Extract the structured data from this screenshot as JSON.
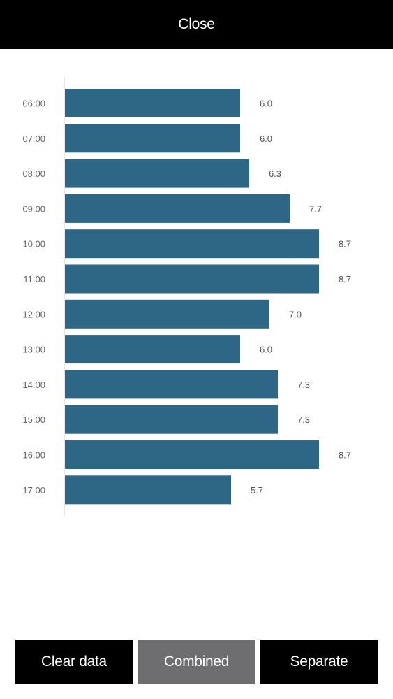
{
  "header": {
    "close_label": "Close"
  },
  "chart_data": {
    "type": "bar",
    "orientation": "horizontal",
    "categories": [
      "06:00",
      "07:00",
      "08:00",
      "09:00",
      "10:00",
      "11:00",
      "12:00",
      "13:00",
      "14:00",
      "15:00",
      "16:00",
      "17:00"
    ],
    "values": [
      6.0,
      6.0,
      6.3,
      7.7,
      8.7,
      8.7,
      7.0,
      6.0,
      7.3,
      7.3,
      8.7,
      5.7
    ],
    "value_labels": [
      "6.0",
      "6.0",
      "6.3",
      "7.7",
      "8.7",
      "8.7",
      "7.0",
      "6.0",
      "7.3",
      "7.3",
      "8.7",
      "5.7"
    ],
    "bar_color": "#2e6685",
    "axis_color": "#cccccc",
    "xlim": [
      0,
      8.7
    ],
    "grid": false,
    "title": "",
    "xlabel": "",
    "ylabel": ""
  },
  "footer": {
    "clear_label": "Clear data",
    "combined_label": "Combined",
    "separate_label": "Separate"
  }
}
